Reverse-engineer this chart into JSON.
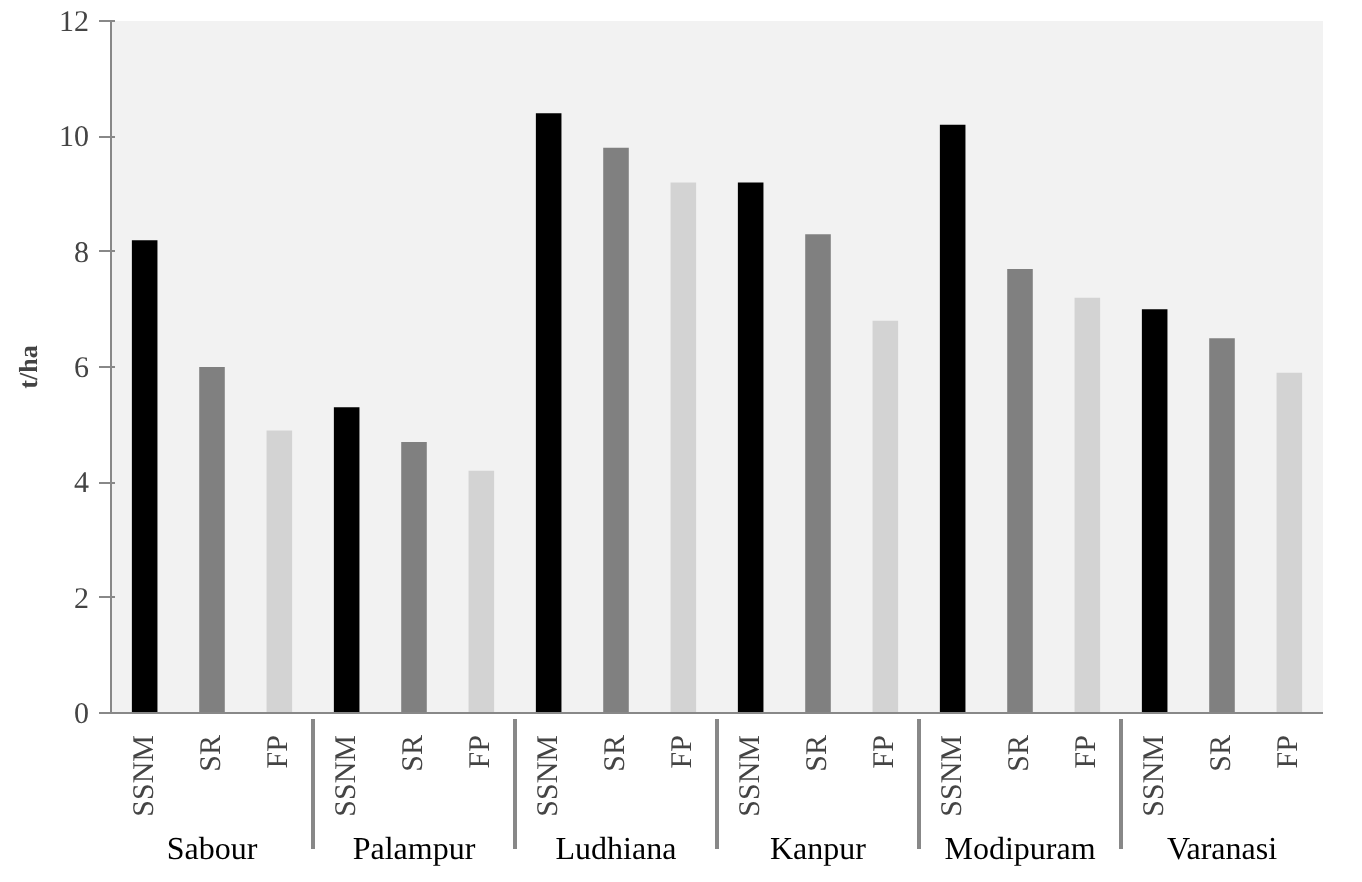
{
  "chart_data": {
    "type": "bar",
    "ylabel": "t/ha",
    "categories": [
      "Sabour",
      "Palampur",
      "Ludhiana",
      "Kanpur",
      "Modipuram",
      "Varanasi"
    ],
    "series": [
      {
        "name": "SSNM",
        "color": "#000000",
        "values": [
          8.2,
          5.3,
          10.4,
          9.2,
          10.2,
          7.0
        ]
      },
      {
        "name": "SR",
        "color": "#808080",
        "values": [
          6.0,
          4.7,
          9.8,
          8.3,
          7.7,
          6.5
        ]
      },
      {
        "name": "FP",
        "color": "#d3d3d3",
        "values": [
          4.9,
          4.2,
          9.2,
          6.8,
          7.2,
          5.9
        ]
      }
    ],
    "ylim": [
      0,
      12
    ],
    "yticks": [
      0,
      2,
      4,
      6,
      8,
      10,
      12
    ],
    "grid": false
  }
}
